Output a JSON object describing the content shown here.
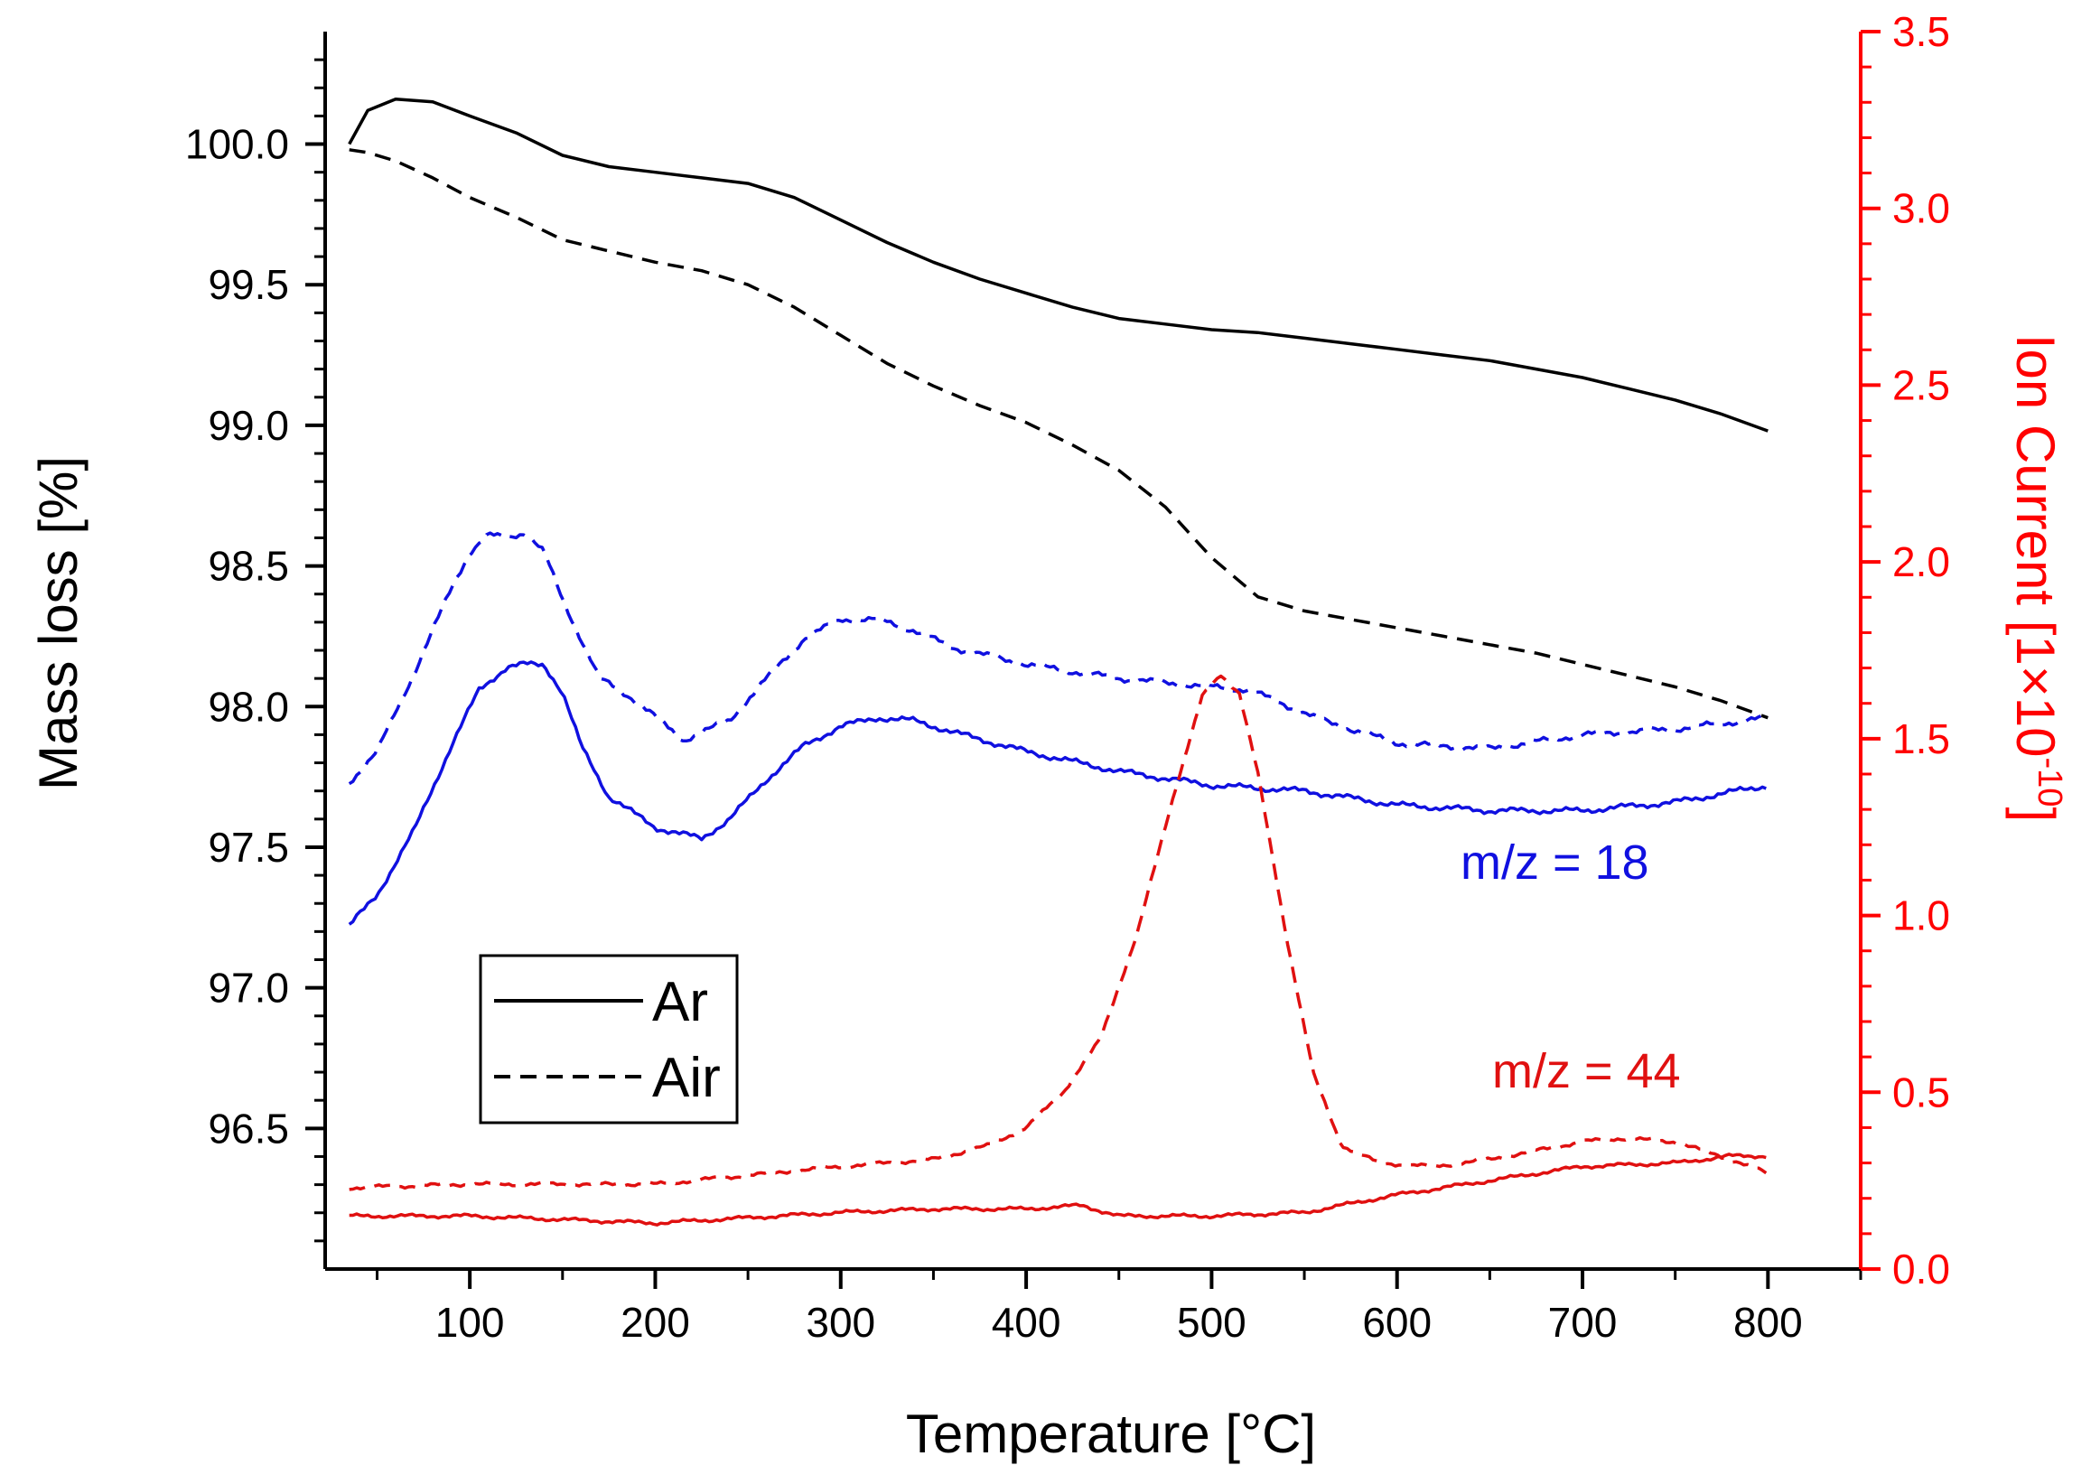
{
  "chart_data": {
    "type": "line",
    "title": "",
    "xlabel": "Temperature [°C]",
    "ylabel_left": "Mass loss [%]",
    "ylabel_right": "Ion Current [1×10",
    "ylabel_right_exp": "-10",
    "ylabel_right_close": "]",
    "xlim": [
      22,
      850
    ],
    "ylim_left": [
      96.0,
      100.4
    ],
    "ylim_right": [
      0.0,
      3.5
    ],
    "x_ticks": [
      100,
      200,
      300,
      400,
      500,
      600,
      700,
      800
    ],
    "x_tick_labels": [
      "100",
      "200",
      "300",
      "400",
      "500",
      "600",
      "700",
      "800"
    ],
    "y_left_ticks": [
      96.5,
      97.0,
      97.5,
      98.0,
      98.5,
      99.0,
      99.5,
      100.0
    ],
    "y_left_tick_labels": [
      "96.5",
      "97.0",
      "97.5",
      "98.0",
      "98.5",
      "99.0",
      "99.5",
      "100.0"
    ],
    "y_right_ticks": [
      0.0,
      0.5,
      1.0,
      1.5,
      2.0,
      2.5,
      3.0,
      3.5
    ],
    "y_right_tick_labels": [
      "0.0",
      "0.5",
      "1.0",
      "1.5",
      "2.0",
      "2.5",
      "3.0",
      "3.5"
    ],
    "grid": false,
    "legend": {
      "placement": "lower-left",
      "entries": [
        {
          "label": "Ar",
          "style": "solid"
        },
        {
          "label": "Air",
          "style": "dashed"
        }
      ]
    },
    "annotations": [
      {
        "text": "m/z = 18",
        "color": "#1010e0"
      },
      {
        "text": "m/z = 44",
        "color": "#e01010"
      }
    ],
    "colors": {
      "mass": "#000000",
      "mz18": "#1010e0",
      "mz44": "#e01010",
      "right_axis": "#ff0000"
    },
    "series": [
      {
        "name": "Ar mass loss",
        "axis": "left",
        "style": "solid",
        "color": "#000000",
        "x": [
          35,
          45,
          60,
          80,
          100,
          125,
          150,
          175,
          200,
          225,
          250,
          275,
          300,
          325,
          350,
          375,
          400,
          425,
          450,
          475,
          500,
          525,
          550,
          575,
          600,
          625,
          650,
          675,
          700,
          725,
          750,
          775,
          800
        ],
        "y": [
          100.0,
          100.12,
          100.16,
          100.15,
          100.1,
          100.04,
          99.96,
          99.92,
          99.9,
          99.88,
          99.86,
          99.81,
          99.73,
          99.65,
          99.58,
          99.52,
          99.47,
          99.42,
          99.38,
          99.36,
          99.34,
          99.33,
          99.31,
          99.29,
          99.27,
          99.25,
          99.23,
          99.2,
          99.17,
          99.13,
          99.09,
          99.04,
          98.98
        ]
      },
      {
        "name": "Air mass loss",
        "axis": "left",
        "style": "dashed",
        "color": "#000000",
        "x": [
          35,
          45,
          60,
          80,
          100,
          125,
          150,
          175,
          200,
          225,
          250,
          275,
          300,
          325,
          350,
          375,
          400,
          425,
          450,
          475,
          500,
          525,
          550,
          575,
          600,
          625,
          650,
          675,
          700,
          725,
          750,
          775,
          800
        ],
        "y": [
          99.98,
          99.97,
          99.94,
          99.88,
          99.81,
          99.74,
          99.66,
          99.62,
          99.58,
          99.55,
          99.5,
          99.42,
          99.32,
          99.22,
          99.14,
          99.07,
          99.01,
          98.93,
          98.84,
          98.71,
          98.53,
          98.39,
          98.34,
          98.31,
          98.28,
          98.25,
          98.22,
          98.19,
          98.15,
          98.11,
          98.07,
          98.02,
          97.96
        ]
      },
      {
        "name": "m/z = 18 (Ar)",
        "axis": "left",
        "style": "solid",
        "color": "#1010e0",
        "x": [
          35,
          50,
          70,
          90,
          105,
          120,
          130,
          140,
          150,
          160,
          175,
          200,
          225,
          240,
          260,
          280,
          300,
          320,
          340,
          360,
          400,
          450,
          500,
          550,
          600,
          650,
          700,
          750,
          800
        ],
        "y": [
          97.22,
          97.33,
          97.56,
          97.86,
          98.06,
          98.14,
          98.15,
          98.15,
          98.05,
          97.86,
          97.68,
          97.57,
          97.53,
          97.6,
          97.74,
          97.86,
          97.93,
          97.96,
          97.95,
          97.91,
          97.84,
          97.77,
          97.72,
          97.7,
          97.65,
          97.63,
          97.63,
          97.66,
          97.72
        ]
      },
      {
        "name": "m/z = 18 (Air)",
        "axis": "left",
        "style": "dashed",
        "color": "#1010e0",
        "x": [
          35,
          50,
          70,
          90,
          100,
          110,
          120,
          130,
          140,
          150,
          170,
          190,
          215,
          240,
          260,
          280,
          300,
          320,
          340,
          360,
          400,
          450,
          500,
          520,
          560,
          600,
          650,
          700,
          750,
          800
        ],
        "y": [
          97.73,
          97.84,
          98.12,
          98.42,
          98.55,
          98.61,
          98.6,
          98.62,
          98.55,
          98.38,
          98.1,
          98.02,
          97.88,
          97.95,
          98.1,
          98.24,
          98.31,
          98.31,
          98.27,
          98.21,
          98.15,
          98.1,
          98.07,
          98.06,
          97.95,
          97.87,
          97.85,
          97.9,
          97.92,
          97.96
        ]
      },
      {
        "name": "m/z = 44 (Ar)",
        "axis": "right",
        "style": "solid",
        "color": "#e01010",
        "x": [
          35,
          100,
          200,
          300,
          350,
          400,
          430,
          450,
          500,
          550,
          600,
          650,
          700,
          750,
          780,
          800
        ],
        "y": [
          0.15,
          0.15,
          0.13,
          0.16,
          0.17,
          0.17,
          0.18,
          0.15,
          0.15,
          0.16,
          0.21,
          0.25,
          0.29,
          0.3,
          0.32,
          0.32
        ]
      },
      {
        "name": "m/z = 44 (Air)",
        "axis": "right",
        "style": "dashed",
        "color": "#e01010",
        "x": [
          35,
          100,
          200,
          300,
          350,
          380,
          400,
          420,
          440,
          460,
          480,
          495,
          505,
          515,
          525,
          540,
          555,
          570,
          590,
          620,
          650,
          700,
          720,
          750,
          780,
          800
        ],
        "y": [
          0.23,
          0.24,
          0.24,
          0.29,
          0.31,
          0.35,
          0.4,
          0.5,
          0.65,
          0.95,
          1.35,
          1.62,
          1.68,
          1.63,
          1.4,
          0.95,
          0.55,
          0.35,
          0.3,
          0.29,
          0.31,
          0.36,
          0.37,
          0.36,
          0.31,
          0.27
        ]
      }
    ]
  }
}
